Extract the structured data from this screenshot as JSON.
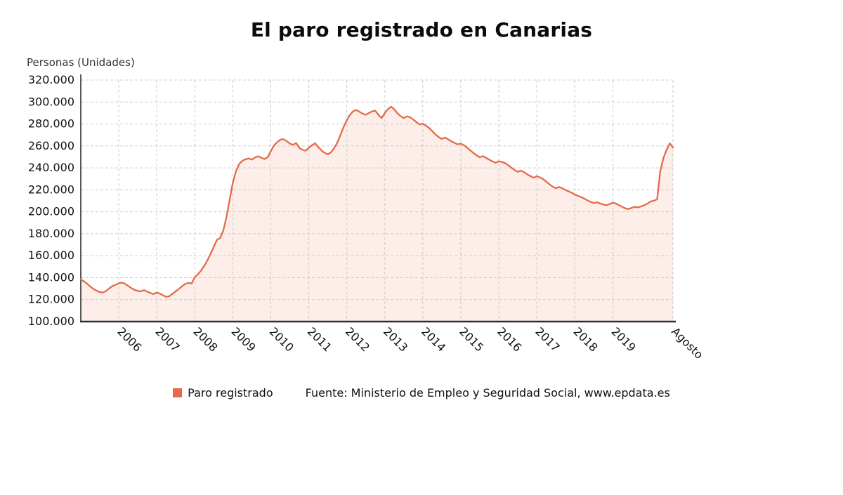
{
  "title": "El paro registrado en Canarias",
  "y_axis_title": "Personas (Unidades)",
  "legend": {
    "series_label": "Paro registrado",
    "source": "Fuente: Ministerio de Empleo y Seguridad Social, www.epdata.es"
  },
  "colors": {
    "line": "#e56a4b",
    "fill": "#fdeee9",
    "grid": "#cccccc",
    "axis": "#2e2e2e",
    "tick_text": "#111111"
  },
  "chart_data": {
    "type": "line",
    "title": "El paro registrado en Canarias",
    "ylabel": "Personas (Unidades)",
    "xlabel": "",
    "ylim": [
      100000,
      320000
    ],
    "grid": "dashed",
    "legend_position": "bottom",
    "y_ticks": [
      100000,
      120000,
      140000,
      160000,
      180000,
      200000,
      220000,
      240000,
      260000,
      280000,
      300000,
      320000
    ],
    "x_ticks": [
      {
        "label": "2006",
        "month_index": 12
      },
      {
        "label": "2007",
        "month_index": 24
      },
      {
        "label": "2008",
        "month_index": 36
      },
      {
        "label": "2009",
        "month_index": 48
      },
      {
        "label": "2010",
        "month_index": 60
      },
      {
        "label": "2011",
        "month_index": 72
      },
      {
        "label": "2012",
        "month_index": 84
      },
      {
        "label": "2013",
        "month_index": 96
      },
      {
        "label": "2014",
        "month_index": 108
      },
      {
        "label": "2015",
        "month_index": 120
      },
      {
        "label": "2016",
        "month_index": 132
      },
      {
        "label": "2017",
        "month_index": 144
      },
      {
        "label": "2018",
        "month_index": 156
      },
      {
        "label": "2019",
        "month_index": 168
      },
      {
        "label": "Agosto",
        "month_index": 187
      }
    ],
    "series": [
      {
        "name": "Paro registrado",
        "start": "2005-01",
        "end": "2020-08",
        "frequency": "monthly",
        "values": [
          138400,
          136700,
          134500,
          131900,
          129700,
          128100,
          126900,
          126400,
          127900,
          130300,
          132300,
          133500,
          134900,
          135500,
          134300,
          132400,
          130400,
          128900,
          127900,
          127500,
          128700,
          127200,
          126000,
          125000,
          126500,
          125400,
          123900,
          122500,
          123200,
          125300,
          127700,
          129800,
          132200,
          134300,
          135200,
          134700,
          140600,
          143100,
          146600,
          150800,
          155900,
          161800,
          168200,
          174400,
          176100,
          183000,
          195200,
          211000,
          226500,
          237000,
          243500,
          246500,
          247800,
          248600,
          247500,
          249400,
          250600,
          249200,
          248100,
          249600,
          255200,
          260300,
          263400,
          265600,
          266100,
          264400,
          262100,
          261000,
          262600,
          258200,
          256400,
          255600,
          258300,
          260700,
          262400,
          258800,
          255900,
          253600,
          252400,
          254100,
          257900,
          263000,
          270100,
          277300,
          283400,
          288300,
          291600,
          292700,
          291100,
          289400,
          288300,
          290000,
          291500,
          292100,
          288200,
          285400,
          289900,
          293600,
          295800,
          293200,
          289700,
          287100,
          285400,
          287000,
          286100,
          284000,
          281600,
          279500,
          280300,
          278400,
          276300,
          273400,
          270500,
          268000,
          266400,
          267600,
          266000,
          264300,
          262800,
          261400,
          262100,
          260600,
          258400,
          255900,
          253500,
          251400,
          249600,
          250700,
          249100,
          247400,
          245900,
          244600,
          246000,
          245400,
          244300,
          242400,
          240100,
          238000,
          236400,
          237500,
          236000,
          234100,
          232500,
          231000,
          232400,
          231300,
          229800,
          227400,
          225000,
          223000,
          221500,
          222600,
          221500,
          220000,
          218600,
          217500,
          215600,
          214500,
          213400,
          211900,
          210400,
          209000,
          208000,
          208700,
          207600,
          206600,
          206000,
          207000,
          208400,
          207400,
          205900,
          204500,
          203100,
          202500,
          203600,
          204600,
          204000,
          205000,
          206100,
          207600,
          209500,
          210100,
          211400,
          237400,
          249100,
          256600,
          262300,
          258500
        ]
      }
    ]
  }
}
